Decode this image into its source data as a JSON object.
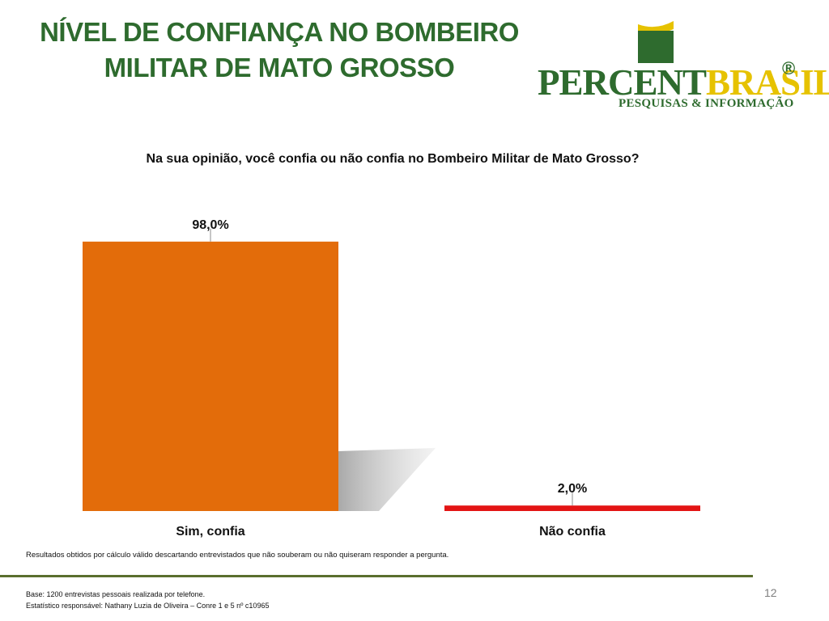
{
  "header": {
    "title_line1": "NÍVEL DE CONFIANÇA NO BOMBEIRO",
    "title_line2": "MILITAR DE MATO GROSSO"
  },
  "logo": {
    "word_part1": "PERCENT",
    "word_part2": "BRASIL",
    "registered_mark": "®",
    "tagline": "PESQUISAS & INFORMAÇÃO",
    "colors": {
      "green": "#2e6b2e",
      "yellow": "#e6c200"
    }
  },
  "chart_data": {
    "type": "bar",
    "title": "Na sua opinião, você confia ou não confia no Bombeiro Militar de Mato Grosso?",
    "categories": [
      "Sim, confia",
      "Não confia"
    ],
    "values": [
      98.0,
      2.0
    ],
    "data_labels": [
      "98,0%",
      "2,0%"
    ],
    "colors": [
      "#e36c0a",
      "#e31414"
    ],
    "ylim": [
      0,
      100
    ],
    "grid": false,
    "legend": "none"
  },
  "notes": {
    "calc": "Resultados obtidos por cálculo válido descartando entrevistados que não souberam ou não quiseram responder a pergunta."
  },
  "footer": {
    "base": "Base: 1200 entrevistas pessoais realizada por telefone.",
    "statistician": "Estatístico responsável: Nathany Luzia de Oliveira – Conre 1 e 5 nº c10965",
    "page_number": "12"
  }
}
